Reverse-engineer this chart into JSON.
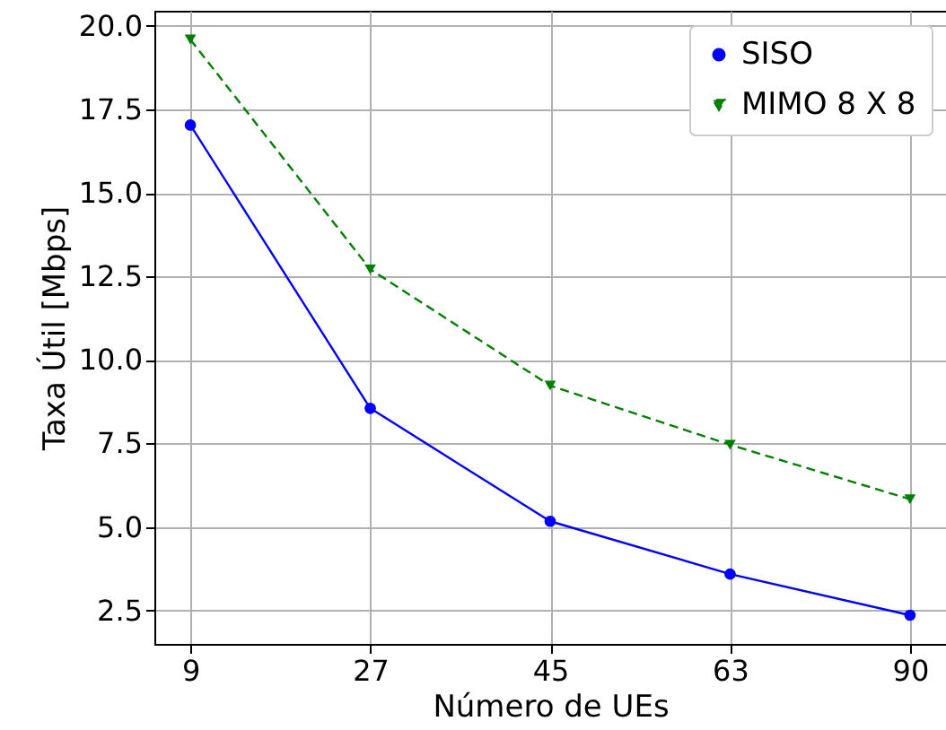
{
  "chart_data": {
    "type": "line",
    "xlabel": "Número de UEs",
    "ylabel": "Taxa Útil [Mbps]",
    "categories": [
      "9",
      "27",
      "45",
      "63",
      "90"
    ],
    "series": [
      {
        "name": "SISO",
        "color": "#0000ff",
        "marker": "circle",
        "line_style": "solid",
        "values": [
          17.03,
          8.55,
          5.17,
          3.59,
          2.36
        ]
      },
      {
        "name": "MIMO 8 X 8",
        "color": "#008000",
        "marker": "triangle",
        "line_style": "dashed",
        "values": [
          19.59,
          12.71,
          9.23,
          7.46,
          5.83
        ]
      }
    ],
    "ylim": [
      1.5,
      20.45
    ],
    "yticks": [
      2.5,
      {
        "value": 5,
        "label": "5.0"
      },
      7.5,
      {
        "value": 10,
        "label": "10.0"
      },
      12.5,
      {
        "value": 15,
        "label": "15.0"
      },
      17.5,
      {
        "value": 20,
        "label": "20.0"
      }
    ],
    "grid": true,
    "legend": "top right"
  }
}
